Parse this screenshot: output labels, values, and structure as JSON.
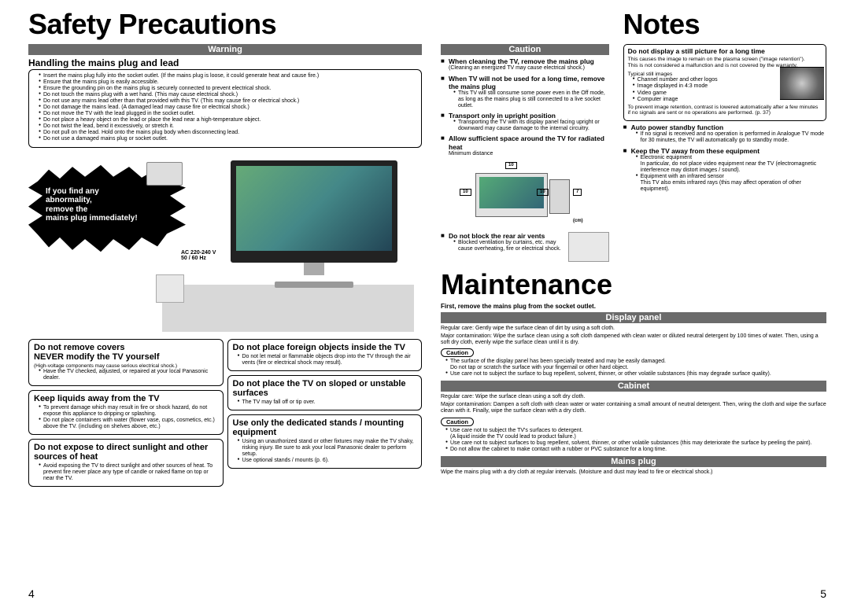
{
  "left": {
    "title": "Safety Precautions",
    "warning_banner": "Warning",
    "mains": {
      "head": "Handling the mains plug and lead",
      "items": [
        "Insert the mains plug fully into the socket outlet. (If the mains plug is loose, it could generate heat and cause fire.)",
        "Ensure that the mains plug is easily accessible.",
        "Ensure the grounding pin on the mains plug is securely connected to prevent electrical shock.",
        "Do not touch the mains plug with a wet hand. (This may cause electrical shock.)",
        "Do not use any mains lead other than that provided with this TV. (This may cause fire or electrical shock.)",
        "Do not damage the mains lead. (A damaged lead may cause fire or electrical shock.)",
        "Do not move the TV with the lead plugged in the socket outlet.",
        "Do not place a heavy object on the lead or place the lead near a high-temperature object.",
        "Do not twist the lead, bend it excessively, or stretch it.",
        "Do not pull on the lead. Hold onto the mains plug body when disconnecting lead.",
        "Do not use a damaged mains plug or socket outlet."
      ]
    },
    "burst_lines": [
      "If you find any",
      "abnormality,",
      "remove the",
      "mains plug immediately!"
    ],
    "ac_label": "AC 220-240 V\n50 / 60 Hz",
    "boxes_left": [
      {
        "head": "Do not remove covers\nNEVER modify the TV yourself",
        "paren": "(High-voltage components may cause serious electrical shock.)",
        "items": [
          "Have the TV checked, adjusted, or repaired at your local Panasonic dealer."
        ]
      },
      {
        "head": "Keep liquids away from the TV",
        "items": [
          "To prevent damage which may result in fire or shock hazard, do not expose this appliance to dripping or splashing.",
          "Do not place containers with water (flower vase, cups, cosmetics, etc.) above the TV. (including on shelves above, etc.)"
        ]
      },
      {
        "head": "Do not expose to direct sunlight and other sources of heat",
        "items": [
          "Avoid exposing the TV to direct sunlight and other sources of heat. To prevent fire never place any type of candle or naked flame on top or near the TV."
        ]
      }
    ],
    "boxes_right": [
      {
        "head": "Do not place foreign objects inside the TV",
        "items": [
          "Do not let metal or flammable objects drop into the TV through the air vents (fire or electrical shock may result)."
        ]
      },
      {
        "head": "Do not place the TV on sloped or unstable surfaces",
        "items": [
          "The TV may fall off or tip over."
        ]
      },
      {
        "head": "Use only the dedicated stands / mounting equipment",
        "items": [
          "Using an unauthorized stand or other fixtures may make the TV shaky, risking injury. Be sure to ask your local Panasonic dealer to perform setup.",
          "Use optional stands / mounts (p. 6)."
        ]
      }
    ],
    "pagenum": "4"
  },
  "right": {
    "caution_banner": "Caution",
    "caution_items": [
      {
        "head": "When cleaning the TV, remove the mains plug",
        "sub": "(Cleaning an energized TV may cause electrical shock.)"
      },
      {
        "head": "When TV will not be used for a long time, remove the mains plug",
        "items": [
          "This TV will still consume some power even in the Off mode, as long as the mains plug is still connected to a live socket outlet."
        ]
      },
      {
        "head": "Transport only in upright position",
        "items": [
          "Transporting the TV with its display panel facing upright or downward may cause damage to the internal circuitry."
        ]
      },
      {
        "head": "Allow sufficient space around the TV for radiated heat",
        "subhead": "Minimum distance",
        "dim_top": "10",
        "dim_left": "10",
        "dim_right_a": "10",
        "dim_right_b": "7",
        "dim_unit": "(cm)"
      },
      {
        "head": "Do not block the rear air vents",
        "items": [
          "Blocked ventilation by curtains, etc. may cause overheating, fire or electrical shock."
        ]
      }
    ],
    "notes_title": "Notes",
    "notes_box": {
      "head": "Do not display a still picture for a long time",
      "p1": "This causes the image to remain on the plasma screen (\"image retention\").",
      "p2": "This is not considered a malfunction and is not covered by the warranty.",
      "typical_head": "Typical still images",
      "typical": [
        "Channel number and other logos",
        "Image displayed in 4:3 mode",
        "Video game",
        "Computer image"
      ],
      "p3": "To prevent image retention, contrast is lowered automatically after a few minutes if no signals are sent or no operations are performed. (p. 37)"
    },
    "notes_items": [
      {
        "head": "Auto power standby function",
        "items": [
          "If no signal is received and no operation is performed in Analogue TV mode for 30 minutes, the TV will automatically go to standby mode."
        ]
      },
      {
        "head": "Keep the TV away from these equipment",
        "items": [
          "Electronic equipment\nIn particular, do not place video equipment near the TV (electromagnetic interference may distort images / sound).",
          "Equipment with an infrared sensor\nThis TV also emits infrared rays (this may affect operation of other equipment)."
        ]
      }
    ],
    "maint_title": "Maintenance",
    "maint_first": "First, remove the mains plug from the socket outlet.",
    "display": {
      "banner": "Display panel",
      "p1": "Regular care: Gently wipe the surface clean of dirt by using a soft cloth.",
      "p2": "Major contamination: Wipe the surface clean using a soft cloth dampened with clean water or diluted neutral detergent by 100 times of water. Then, using a soft dry cloth, evenly wipe the surface clean until it is dry.",
      "caution_tag": "Caution",
      "items": [
        "The surface of the display panel has been specially treated and may be easily damaged.\nDo not tap or scratch the surface with your fingernail or other hard object.",
        "Use care not to subject the surface to bug repellent, solvent, thinner, or other volatile substances (this may degrade surface quality)."
      ]
    },
    "cabinet": {
      "banner": "Cabinet",
      "p1": "Regular care: Wipe the surface clean using a soft dry cloth.",
      "p2": "Major contamination: Dampen a soft cloth with clean water or water containing a small amount of neutral detergent. Then, wring the cloth and wipe the surface clean with it. Finally, wipe the surface clean with a dry cloth.",
      "caution_tag": "Caution",
      "items": [
        "Use care not to subject the TV's surfaces to detergent.\n(A liquid inside the TV could lead to product failure.)",
        "Use care not to subject surfaces to bug repellent, solvent, thinner, or other volatile substances (this may deteriorate the surface by peeling the paint).",
        "Do not allow the cabinet to make contact with a rubber or PVC substance for a long time."
      ]
    },
    "mainsplug": {
      "banner": "Mains plug",
      "p1": "Wipe the mains plug with a dry cloth at regular intervals. (Moisture and dust may lead to fire or electrical shock.)"
    },
    "pagenum": "5"
  }
}
